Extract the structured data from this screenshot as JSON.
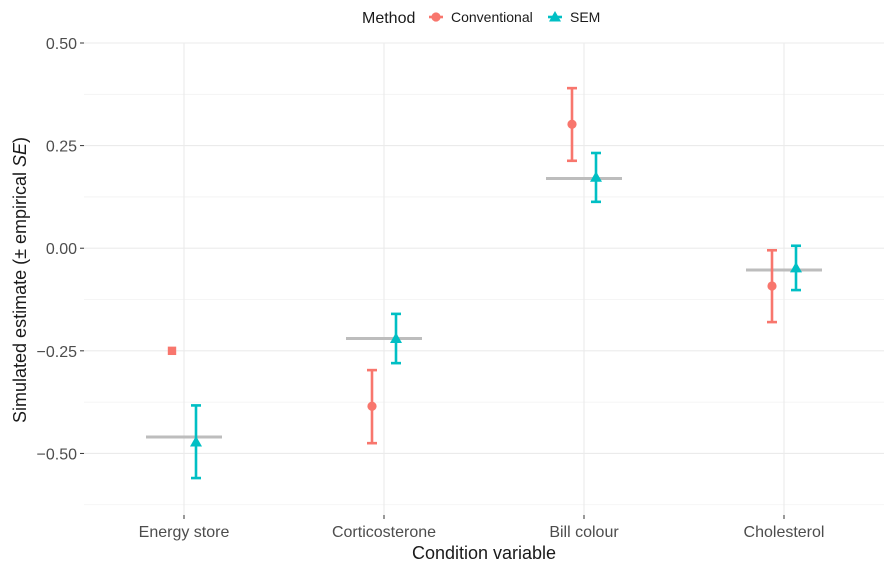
{
  "chart_data": {
    "type": "scatter",
    "xlabel": "Condition variable",
    "ylabel_prefix": "Simulated estimate (± empirical ",
    "ylabel_italic": "SE",
    "ylabel_suffix": ")",
    "categories": [
      "Energy store",
      "Corticosterone",
      "Bill colour",
      "Cholesterol"
    ],
    "ylim": [
      -0.65,
      0.5
    ],
    "yticks": [
      -0.5,
      -0.25,
      0.0,
      0.25,
      0.5
    ],
    "ytick_labels": [
      "−0.50",
      "−0.25",
      "0.00",
      "0.25",
      "0.50"
    ],
    "grid": true,
    "legend": {
      "title": "Method",
      "position": "top",
      "entries": [
        {
          "label": "Conventional",
          "shape": "circle",
          "color": "#F8766D"
        },
        {
          "label": "SEM",
          "shape": "triangle",
          "color": "#00BFC4"
        }
      ]
    },
    "true_values": [
      -0.46,
      -0.22,
      0.17,
      -0.053
    ],
    "true_value_color": "#bdbdbd",
    "series": [
      {
        "name": "Conventional",
        "color": "#F8766D",
        "shape": "circle",
        "values": [
          -0.25,
          -0.385,
          0.302,
          -0.092
        ],
        "lower": [
          null,
          -0.475,
          0.213,
          -0.18
        ],
        "upper": [
          null,
          -0.297,
          0.39,
          -0.005
        ],
        "shapes": [
          "square",
          "circle",
          "circle",
          "circle"
        ]
      },
      {
        "name": "SEM",
        "color": "#00BFC4",
        "shape": "triangle",
        "values": [
          -0.472,
          -0.22,
          0.173,
          -0.048
        ],
        "lower": [
          -0.56,
          -0.28,
          0.113,
          -0.102
        ],
        "upper": [
          -0.383,
          -0.16,
          0.232,
          0.006
        ],
        "shapes": [
          "triangle",
          "triangle",
          "triangle",
          "triangle"
        ]
      }
    ]
  }
}
